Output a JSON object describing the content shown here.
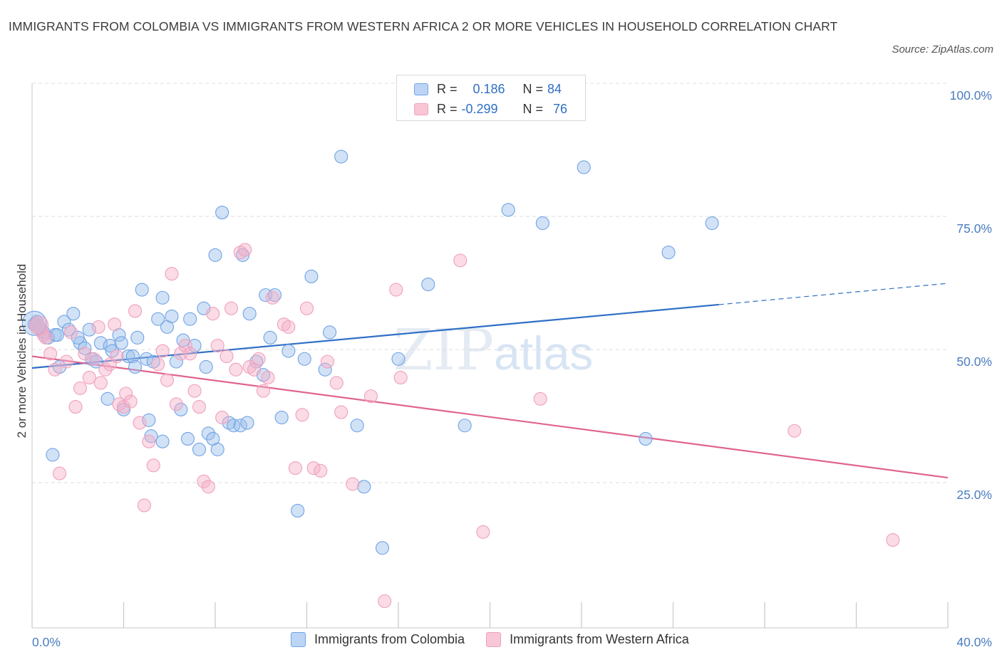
{
  "title": "IMMIGRANTS FROM COLOMBIA VS IMMIGRANTS FROM WESTERN AFRICA 2 OR MORE VEHICLES IN HOUSEHOLD CORRELATION CHART",
  "source": "Source: ZipAtlas.com",
  "watermark": {
    "zip": "ZIP",
    "atlas": "atlas"
  },
  "legend": {
    "rows": [
      {
        "r_label": "R =",
        "r_value": "0.186",
        "n_label": "N =",
        "n_value": "84",
        "color": "#6fa3e6"
      },
      {
        "r_label": "R =",
        "r_value": "-0.299",
        "n_label": "N =",
        "n_value": "76",
        "color": "#f0a0bd"
      }
    ]
  },
  "bottom_legend": [
    "Immigrants from Colombia",
    "Immigrants from Western Africa"
  ],
  "chart_data": {
    "type": "scatter",
    "ylabel": "2 or more Vehicles in Household",
    "x_tick_labels": [
      "0.0%",
      "40.0%"
    ],
    "y_tick_labels": [
      "100.0%",
      "75.0%",
      "50.0%",
      "25.0%"
    ],
    "xlim": [
      0,
      40
    ],
    "ylim": [
      0,
      100
    ],
    "y_ticks": [
      100,
      75,
      50,
      25
    ],
    "grid": true,
    "series": [
      {
        "name": "Immigrants from Colombia",
        "color": "#6fa3e6",
        "trend": {
          "x": [
            0,
            30
          ],
          "y": [
            48.8,
            60.7
          ],
          "dashed_to": [
            40,
            64.7
          ]
        },
        "points": [
          [
            0.2,
            57.5
          ],
          [
            0.3,
            56.5
          ],
          [
            0.5,
            55.5
          ],
          [
            0.7,
            54.5
          ],
          [
            1,
            55
          ],
          [
            1.4,
            57.5
          ],
          [
            1.6,
            56
          ],
          [
            1.8,
            59
          ],
          [
            2.1,
            53.5
          ],
          [
            2.3,
            52.5
          ],
          [
            2.6,
            50.5
          ],
          [
            2.8,
            50
          ],
          [
            3,
            53.5
          ],
          [
            3.4,
            53
          ],
          [
            3.5,
            52
          ],
          [
            3.8,
            55
          ],
          [
            3.9,
            53.5
          ],
          [
            4.2,
            51
          ],
          [
            4.4,
            51
          ],
          [
            4.5,
            49
          ],
          [
            4.6,
            54.5
          ],
          [
            4.8,
            63.5
          ],
          [
            5,
            50.5
          ],
          [
            5.3,
            50
          ],
          [
            5.5,
            58
          ],
          [
            5.7,
            62
          ],
          [
            5.9,
            56.5
          ],
          [
            6.1,
            58.5
          ],
          [
            6.3,
            50
          ],
          [
            6.6,
            54
          ],
          [
            6.9,
            58
          ],
          [
            7.1,
            53
          ],
          [
            7.5,
            60
          ],
          [
            7.6,
            49
          ],
          [
            8,
            70
          ],
          [
            8.3,
            78
          ],
          [
            8.6,
            38.5
          ],
          [
            8.8,
            38
          ],
          [
            9.1,
            38
          ],
          [
            9.5,
            59
          ],
          [
            9.8,
            50
          ],
          [
            10.1,
            47.5
          ],
          [
            10.2,
            62.5
          ],
          [
            10.4,
            54.5
          ],
          [
            10.6,
            62.5
          ],
          [
            10.9,
            39.5
          ],
          [
            11.2,
            52
          ],
          [
            11.6,
            22
          ],
          [
            11.9,
            50.5
          ],
          [
            12.2,
            66
          ],
          [
            12.8,
            48.5
          ],
          [
            13,
            55.5
          ],
          [
            13.5,
            88.5
          ],
          [
            14.2,
            38
          ],
          [
            14.5,
            26.5
          ],
          [
            15.3,
            15
          ],
          [
            16,
            50.5
          ],
          [
            17.3,
            64.5
          ],
          [
            18.9,
            38
          ],
          [
            20.8,
            78.5
          ],
          [
            22.3,
            76
          ],
          [
            24.1,
            86.5
          ],
          [
            26.8,
            35.5
          ],
          [
            27.8,
            70.5
          ],
          [
            29.7,
            76
          ],
          [
            0.9,
            32.5
          ],
          [
            1.2,
            49
          ],
          [
            2.5,
            56
          ],
          [
            3.3,
            43
          ],
          [
            4,
            41
          ],
          [
            5.1,
            39
          ],
          [
            5.2,
            36
          ],
          [
            5.7,
            35
          ],
          [
            6.5,
            41
          ],
          [
            6.8,
            35.5
          ],
          [
            7.3,
            33.5
          ],
          [
            7.7,
            36.5
          ],
          [
            7.9,
            35.5
          ],
          [
            8.1,
            33.5
          ],
          [
            9.2,
            70
          ],
          [
            9.4,
            38.5
          ],
          [
            2,
            54.5
          ],
          [
            1.1,
            55
          ],
          [
            0.1,
            57
          ]
        ]
      },
      {
        "name": "Immigrants from Western Africa",
        "color": "#f0a0bd",
        "trend": {
          "x": [
            0,
            40
          ],
          "y": [
            51,
            28.2
          ]
        },
        "points": [
          [
            0.2,
            57
          ],
          [
            0.4,
            56
          ],
          [
            0.6,
            54.5
          ],
          [
            0.8,
            51.5
          ],
          [
            1,
            48.5
          ],
          [
            1.2,
            29
          ],
          [
            1.5,
            50
          ],
          [
            1.7,
            55.5
          ],
          [
            1.9,
            41.5
          ],
          [
            2.1,
            45
          ],
          [
            2.3,
            51.5
          ],
          [
            2.5,
            47
          ],
          [
            2.7,
            50.5
          ],
          [
            2.9,
            56.5
          ],
          [
            3,
            46
          ],
          [
            3.2,
            48.5
          ],
          [
            3.4,
            49.5
          ],
          [
            3.6,
            57
          ],
          [
            3.8,
            42
          ],
          [
            4,
            41.5
          ],
          [
            4.1,
            44
          ],
          [
            4.3,
            42.5
          ],
          [
            4.5,
            59.5
          ],
          [
            4.7,
            38.5
          ],
          [
            4.9,
            23
          ],
          [
            5.1,
            35
          ],
          [
            5.3,
            30.5
          ],
          [
            5.5,
            49.5
          ],
          [
            5.7,
            52
          ],
          [
            5.9,
            46.5
          ],
          [
            6.1,
            66.5
          ],
          [
            6.3,
            42
          ],
          [
            6.5,
            51.5
          ],
          [
            6.7,
            53
          ],
          [
            6.9,
            51.5
          ],
          [
            7.1,
            44.5
          ],
          [
            7.3,
            41.5
          ],
          [
            7.5,
            27.5
          ],
          [
            7.7,
            26.5
          ],
          [
            7.9,
            59
          ],
          [
            8.1,
            53
          ],
          [
            8.3,
            39.5
          ],
          [
            8.5,
            51
          ],
          [
            8.7,
            60
          ],
          [
            8.9,
            48.5
          ],
          [
            9.1,
            70.5
          ],
          [
            9.3,
            71
          ],
          [
            9.5,
            49
          ],
          [
            9.7,
            48.5
          ],
          [
            9.9,
            50.5
          ],
          [
            10.1,
            44.5
          ],
          [
            10.3,
            47
          ],
          [
            10.5,
            62
          ],
          [
            11,
            57
          ],
          [
            11.2,
            56.5
          ],
          [
            11.5,
            30
          ],
          [
            11.8,
            40
          ],
          [
            12,
            60
          ],
          [
            12.3,
            30
          ],
          [
            12.6,
            29.5
          ],
          [
            12.9,
            50
          ],
          [
            13.3,
            46
          ],
          [
            13.5,
            40.5
          ],
          [
            14,
            27
          ],
          [
            14.8,
            43.5
          ],
          [
            15.4,
            5
          ],
          [
            16.1,
            47
          ],
          [
            15.9,
            63.5
          ],
          [
            18.7,
            69
          ],
          [
            19.7,
            18
          ],
          [
            22.2,
            43
          ],
          [
            33.3,
            37
          ],
          [
            37.6,
            16.5
          ],
          [
            0.3,
            56.5
          ],
          [
            0.5,
            55
          ],
          [
            3.7,
            51
          ]
        ]
      }
    ]
  }
}
